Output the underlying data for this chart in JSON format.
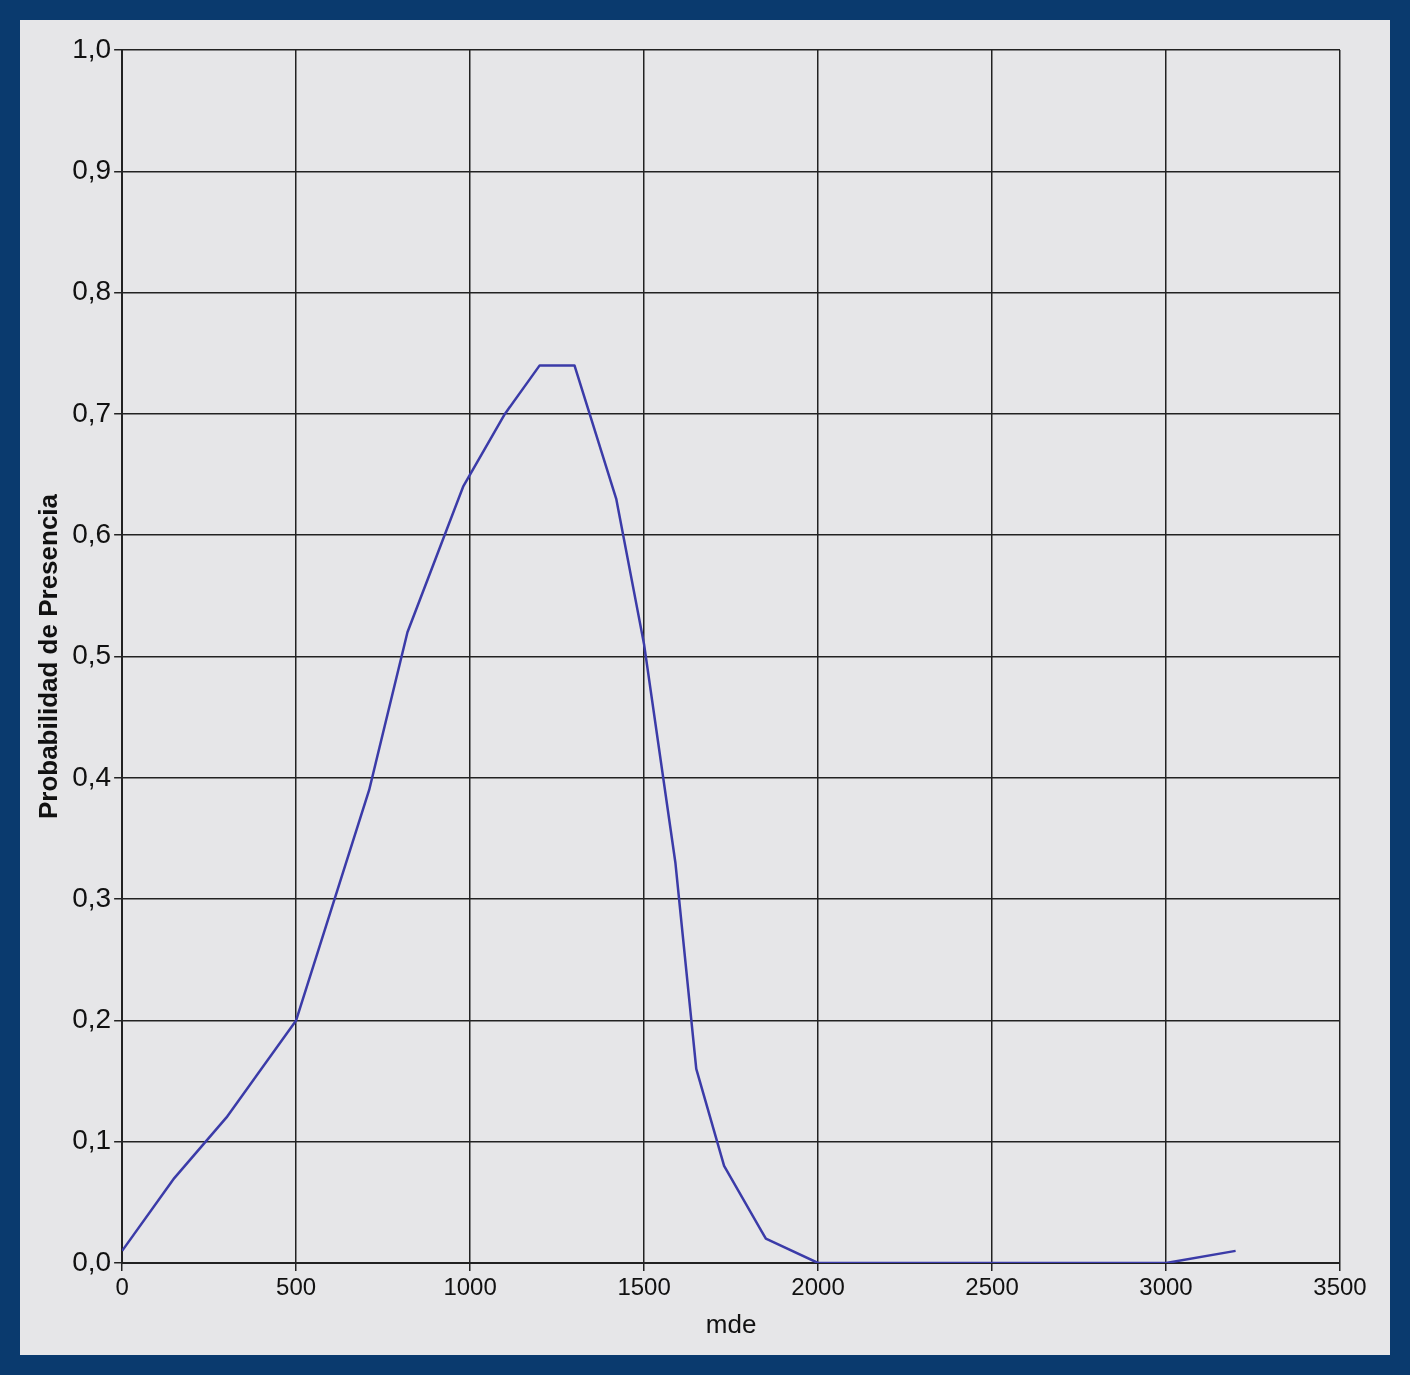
{
  "chart_data": {
    "type": "line",
    "xlabel": "mde",
    "ylabel": "Probabilidad de Presencia",
    "x": [
      0,
      150,
      300,
      500,
      710,
      820,
      900,
      980,
      1100,
      1200,
      1300,
      1420,
      1500,
      1590,
      1650,
      1730,
      1850,
      2000,
      2500,
      3000,
      3200
    ],
    "series": [
      {
        "color": "#3b3ba8",
        "values": [
          0.01,
          0.07,
          0.12,
          0.2,
          0.39,
          0.52,
          0.58,
          0.64,
          0.7,
          0.74,
          0.74,
          0.63,
          0.51,
          0.33,
          0.16,
          0.08,
          0.02,
          0.0,
          0.0,
          0.0,
          0.01
        ]
      }
    ],
    "xlim": [
      0,
      3500
    ],
    "xticks": [
      0,
      500,
      1000,
      1500,
      2000,
      2500,
      3000,
      3500
    ],
    "ylim": [
      0,
      1
    ],
    "yticks": [
      {
        "value": 0,
        "label": "0,0"
      },
      {
        "value": 0.1,
        "label": "0,1"
      },
      {
        "value": 0.2,
        "label": "0,2"
      },
      {
        "value": 0.3,
        "label": "0,3"
      },
      {
        "value": 0.4,
        "label": "0,4"
      },
      {
        "value": 0.5,
        "label": "0,5"
      },
      {
        "value": 0.6,
        "label": "0,6"
      },
      {
        "value": 0.7,
        "label": "0,7"
      },
      {
        "value": 0.8,
        "label": "0,8"
      },
      {
        "value": 0.9,
        "label": "0,9"
      },
      {
        "value": 1,
        "label": "1,0"
      }
    ],
    "grid": true,
    "legend": false,
    "marker": "none",
    "line_style": "solid"
  }
}
